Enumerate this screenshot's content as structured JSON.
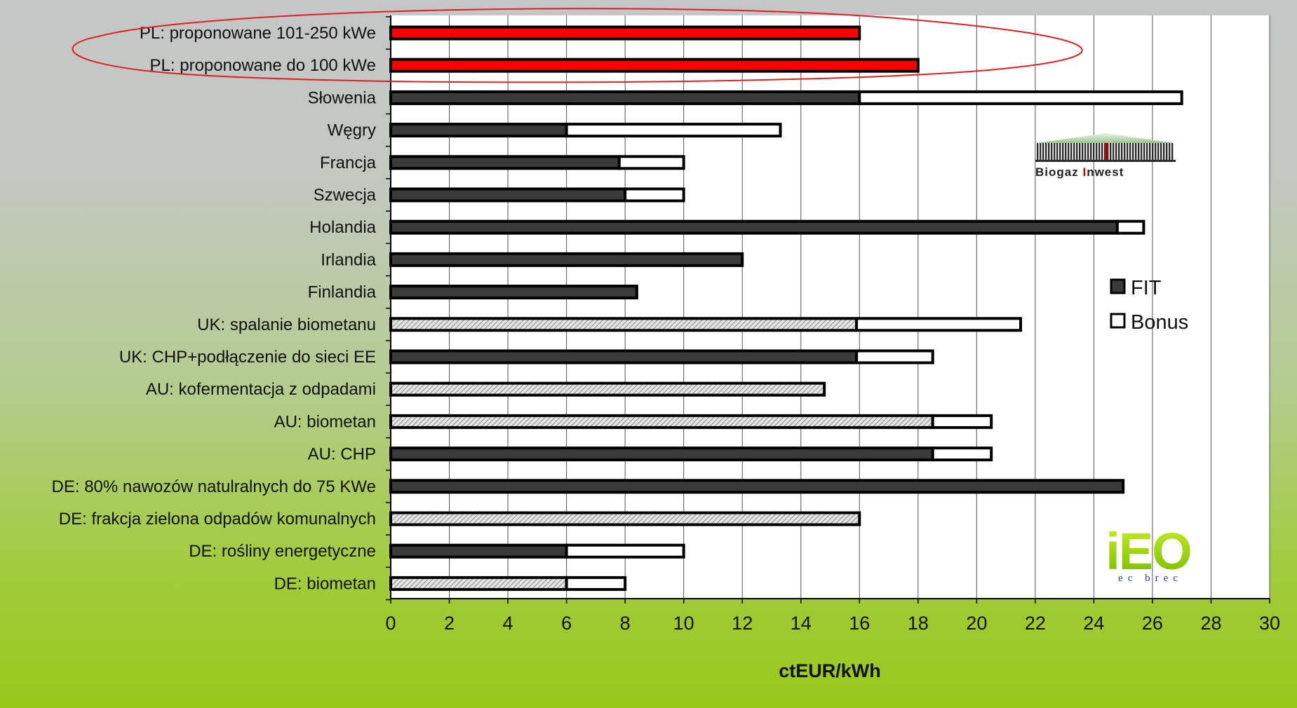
{
  "chart_data": {
    "type": "bar",
    "orientation": "horizontal",
    "stacked": true,
    "categories": [
      "PL: proponowane 101-250 kWe",
      "PL: proponowane do 100 kWe",
      "Słowenia",
      "Węgry",
      "Francja",
      "Szwecja",
      "Holandia",
      "Irlandia",
      "Finlandia",
      "UK: spalanie biometanu",
      "UK: CHP+podłączenie do sieci EE",
      "AU: kofermentacja z odpadami",
      "AU: biometan",
      "AU: CHP",
      "DE: 80% nawozów natulralnych do 75 KWe",
      "DE: frakcja zielona odpadów komunalnych",
      "DE: rośliny energetyczne",
      "DE: biometan"
    ],
    "series": [
      {
        "name": "FIT",
        "values": [
          16,
          18,
          16,
          6,
          7.8,
          8,
          24.8,
          12,
          8.4,
          15.9,
          15.9,
          14.8,
          18.5,
          18.5,
          25,
          16,
          6,
          6
        ]
      },
      {
        "name": "Bonus",
        "values": [
          0,
          0,
          11,
          7.3,
          2.2,
          2,
          0.9,
          0,
          0,
          5.6,
          2.6,
          0,
          2,
          2,
          0,
          0,
          4,
          2
        ]
      }
    ],
    "fit_fill": [
      "red",
      "red",
      "dark",
      "dark",
      "dark",
      "dark",
      "dark",
      "dark",
      "dark",
      "hatched",
      "dark",
      "hatched",
      "hatched",
      "dark",
      "dark",
      "hatched",
      "dark",
      "hatched"
    ],
    "highlighted_categories": [
      "PL: proponowane 101-250 kWe",
      "PL: proponowane do 100 kWe"
    ],
    "xlabel": "ctEUR/kWh",
    "xlim": [
      0,
      30
    ],
    "xticks": [
      0,
      2,
      4,
      6,
      8,
      10,
      12,
      14,
      16,
      18,
      20,
      22,
      24,
      26,
      28,
      30
    ],
    "grid": "vertical",
    "legend_position": "right",
    "colors": {
      "fit_dark": "#3a3a3a",
      "highlight": "#ff0000",
      "bonus": "#ffffff",
      "hatch": "#d9d9d9",
      "ellipse": "#e02020"
    }
  },
  "logos": {
    "biogaz_text_a": "Biogaz ",
    "biogaz_text_b": "I",
    "biogaz_text_c": "nwest",
    "ieo_text": "iEO",
    "ieo_sub": "ec brec"
  }
}
